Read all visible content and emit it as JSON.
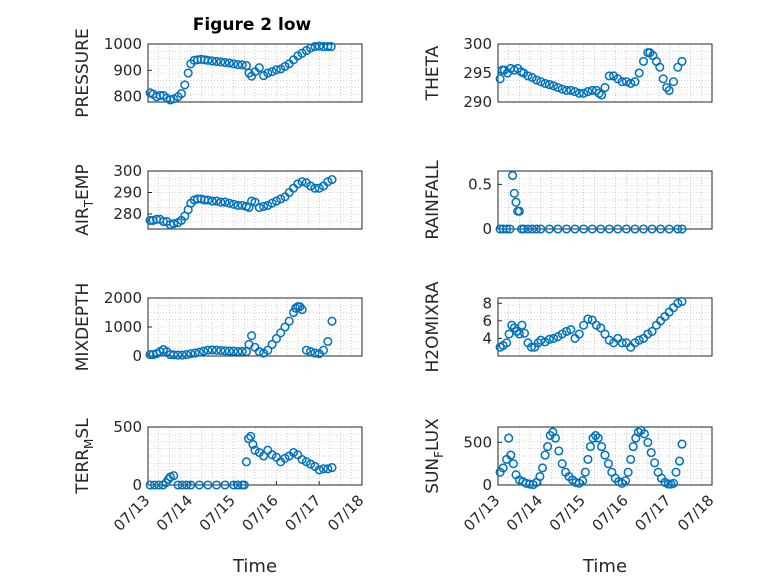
{
  "figure_title": "Figure 2 low",
  "colors": {
    "marker": "#0072bd",
    "axis": "#262626",
    "grid": "#b0b0b0"
  },
  "chart_data": [
    {
      "type": "scatter",
      "id": "pressure",
      "title": "Figure 2 low",
      "ylabel": {
        "main": "PRESSURE",
        "sub": ""
      },
      "xlabel": "",
      "ylim": [
        780,
        1000
      ],
      "yticks": [
        800,
        900,
        1000
      ],
      "xlim": [
        13,
        17.4
      ],
      "xticks": [],
      "xticklabels": [],
      "grid": true,
      "x": [
        13.05,
        13.12,
        13.2,
        13.28,
        13.36,
        13.44,
        13.52,
        13.6,
        13.7,
        13.78,
        13.86,
        13.94,
        14.0,
        14.08,
        14.16,
        14.24,
        14.32,
        14.4,
        14.5,
        14.6,
        14.7,
        14.8,
        14.9,
        15.0,
        15.1,
        15.2,
        15.3,
        15.36,
        15.42,
        15.5,
        15.6,
        15.7,
        15.8,
        15.9,
        16.0,
        16.1,
        16.2,
        16.3,
        16.4,
        16.5,
        16.6,
        16.7,
        16.8,
        16.9,
        17.0,
        17.1,
        17.2,
        17.28
      ],
      "y": [
        815,
        810,
        800,
        805,
        805,
        795,
        788,
        792,
        800,
        812,
        845,
        890,
        925,
        938,
        940,
        942,
        940,
        938,
        936,
        934,
        932,
        930,
        928,
        925,
        922,
        921,
        918,
        890,
        878,
        895,
        910,
        880,
        890,
        895,
        902,
        905,
        915,
        925,
        940,
        955,
        965,
        975,
        985,
        990,
        992,
        990,
        990,
        990
      ]
    },
    {
      "type": "scatter",
      "id": "theta",
      "ylabel": {
        "main": "THETA",
        "sub": ""
      },
      "xlabel": "",
      "ylim": [
        290,
        300
      ],
      "yticks": [
        290,
        295,
        300
      ],
      "xlim": [
        13,
        17.4
      ],
      "xticks": [],
      "xticklabels": [],
      "grid": true,
      "x": [
        13.05,
        13.1,
        13.15,
        13.22,
        13.3,
        13.38,
        13.46,
        13.54,
        13.6,
        13.7,
        13.8,
        13.9,
        14.0,
        14.1,
        14.2,
        14.3,
        14.4,
        14.5,
        14.6,
        14.7,
        14.8,
        14.9,
        15.0,
        15.1,
        15.2,
        15.3,
        15.36,
        15.42,
        15.5,
        15.6,
        15.7,
        15.8,
        15.9,
        16.0,
        16.1,
        16.2,
        16.3,
        16.4,
        16.5,
        16.55,
        16.62,
        16.7,
        16.78,
        16.86,
        16.94,
        17.0,
        17.1,
        17.2,
        17.3
      ],
      "y": [
        294,
        295.5,
        295.5,
        295,
        295.8,
        295.5,
        295.8,
        295.2,
        295,
        294.5,
        294.2,
        293.8,
        293.5,
        293.2,
        293,
        292.8,
        292.5,
        292.2,
        292,
        292,
        291.8,
        291.5,
        291.5,
        291.8,
        292,
        292,
        291.5,
        291.2,
        292.5,
        294.5,
        294.5,
        294,
        293.5,
        293.5,
        293.2,
        293.5,
        295,
        297,
        298.5,
        298.5,
        298,
        297,
        296,
        294,
        292.5,
        292,
        293.5,
        296,
        297
      ]
    },
    {
      "type": "scatter",
      "id": "air_temp",
      "ylabel": {
        "main": "AIR",
        "sub": "T",
        "tail": "EMP"
      },
      "xlabel": "",
      "ylim": [
        273,
        300
      ],
      "yticks": [
        280,
        290,
        300
      ],
      "xlim": [
        13,
        17.4
      ],
      "xticks": [],
      "xticklabels": [],
      "grid": true,
      "x": [
        13.05,
        13.12,
        13.2,
        13.28,
        13.36,
        13.44,
        13.52,
        13.6,
        13.7,
        13.78,
        13.86,
        13.94,
        14.0,
        14.08,
        14.16,
        14.24,
        14.32,
        14.4,
        14.5,
        14.6,
        14.7,
        14.8,
        14.9,
        15.0,
        15.1,
        15.2,
        15.3,
        15.36,
        15.42,
        15.5,
        15.6,
        15.7,
        15.8,
        15.9,
        16.0,
        16.1,
        16.2,
        16.3,
        16.4,
        16.5,
        16.6,
        16.7,
        16.8,
        16.9,
        17.0,
        17.1,
        17.2,
        17.3
      ],
      "y": [
        277,
        277,
        277.5,
        277.5,
        276.5,
        276.5,
        275,
        275.5,
        276,
        277,
        279,
        282,
        285,
        286.5,
        287,
        287,
        286.5,
        286.5,
        286,
        286,
        285.5,
        285.5,
        285,
        284.5,
        284,
        284,
        283.5,
        283,
        286,
        285.5,
        283,
        283.5,
        284,
        285,
        286,
        287,
        288,
        290,
        292,
        294,
        295,
        294.5,
        293,
        292,
        292,
        293,
        295,
        296
      ]
    },
    {
      "type": "scatter",
      "id": "rainfall",
      "ylabel": {
        "main": "RAINFALL",
        "sub": ""
      },
      "xlabel": "",
      "ylim": [
        0,
        0.65
      ],
      "yticks": [
        0,
        0.5
      ],
      "xlim": [
        13,
        17.4
      ],
      "xticks": [],
      "xticklabels": [],
      "grid": true,
      "x": [
        13.05,
        13.12,
        13.2,
        13.28,
        13.34,
        13.38,
        13.42,
        13.46,
        13.5,
        13.55,
        13.6,
        13.7,
        13.8,
        13.9,
        14.0,
        14.2,
        14.4,
        14.6,
        14.8,
        15.0,
        15.2,
        15.4,
        15.6,
        15.8,
        16.0,
        16.2,
        16.4,
        16.6,
        16.8,
        17.0,
        17.2,
        17.3
      ],
      "y": [
        0,
        0,
        0,
        0,
        0.6,
        0.4,
        0.3,
        0.2,
        0.2,
        0,
        0,
        0,
        0,
        0,
        0,
        0,
        0,
        0,
        0,
        0,
        0,
        0,
        0,
        0,
        0,
        0,
        0,
        0,
        0,
        0,
        0,
        0
      ]
    },
    {
      "type": "scatter",
      "id": "mixdepth",
      "ylabel": {
        "main": "MIXDEPTH",
        "sub": ""
      },
      "xlabel": "",
      "ylim": [
        0,
        2000
      ],
      "yticks": [
        0,
        1000,
        2000
      ],
      "xlim": [
        13,
        17.4
      ],
      "xticks": [],
      "xticklabels": [],
      "grid": true,
      "x": [
        13.05,
        13.12,
        13.2,
        13.28,
        13.36,
        13.44,
        13.52,
        13.6,
        13.7,
        13.8,
        13.9,
        14.0,
        14.1,
        14.2,
        14.3,
        14.4,
        14.5,
        14.6,
        14.7,
        14.8,
        14.9,
        15.0,
        15.1,
        15.2,
        15.3,
        15.36,
        15.42,
        15.5,
        15.6,
        15.7,
        15.8,
        15.9,
        16.0,
        16.1,
        16.2,
        16.3,
        16.4,
        16.45,
        16.5,
        16.55,
        16.6,
        16.7,
        16.8,
        16.9,
        17.0,
        17.1,
        17.2,
        17.3
      ],
      "y": [
        50,
        50,
        80,
        150,
        220,
        150,
        50,
        40,
        30,
        30,
        50,
        80,
        100,
        130,
        170,
        200,
        210,
        200,
        190,
        180,
        170,
        170,
        160,
        160,
        150,
        400,
        700,
        300,
        150,
        100,
        200,
        400,
        600,
        800,
        1000,
        1200,
        1500,
        1650,
        1700,
        1700,
        1600,
        200,
        150,
        100,
        80,
        200,
        500,
        1200
      ]
    },
    {
      "type": "scatter",
      "id": "h2omixra",
      "ylabel": {
        "main": "H2OMIXRA",
        "sub": ""
      },
      "xlabel": "",
      "ylim": [
        2,
        8.6
      ],
      "yticks": [
        4,
        6,
        8
      ],
      "xlim": [
        13,
        17.4
      ],
      "xticks": [],
      "xticklabels": [],
      "grid": true,
      "x": [
        13.05,
        13.12,
        13.2,
        13.26,
        13.32,
        13.38,
        13.44,
        13.5,
        13.56,
        13.62,
        13.7,
        13.78,
        13.86,
        13.94,
        14.0,
        14.1,
        14.2,
        14.3,
        14.4,
        14.5,
        14.6,
        14.7,
        14.8,
        14.9,
        15.0,
        15.1,
        15.2,
        15.3,
        15.4,
        15.5,
        15.6,
        15.7,
        15.8,
        15.9,
        16.0,
        16.1,
        16.2,
        16.3,
        16.4,
        16.5,
        16.6,
        16.7,
        16.8,
        16.9,
        17.0,
        17.1,
        17.2,
        17.3
      ],
      "y": [
        3,
        3.2,
        3.5,
        4.5,
        5.5,
        5.2,
        4.8,
        4.5,
        5.5,
        4.6,
        3.5,
        3,
        3,
        3.5,
        3.8,
        3.6,
        3.9,
        4,
        4.2,
        4.5,
        4.8,
        5,
        4,
        4.5,
        5.5,
        6.2,
        6.1,
        5.5,
        5.2,
        4.5,
        3.8,
        3.5,
        4,
        3.5,
        3.5,
        3,
        3.5,
        3.8,
        4,
        4.5,
        4.8,
        5.5,
        6,
        6.5,
        7,
        7.5,
        8,
        8.2
      ]
    },
    {
      "type": "scatter",
      "id": "terr_msl",
      "ylabel": {
        "main": "TERR",
        "sub": "M",
        "tail": "SL"
      },
      "xlabel": "Time",
      "ylim": [
        0,
        500
      ],
      "yticks": [
        0,
        500
      ],
      "xlim": [
        13,
        18
      ],
      "xticks": [
        13,
        14,
        15,
        16,
        17,
        18
      ],
      "xticklabels": [
        "07/13",
        "07/14",
        "07/15",
        "07/16",
        "07/17",
        "07/18"
      ],
      "grid": true,
      "x": [
        13.05,
        13.15,
        13.25,
        13.35,
        13.42,
        13.48,
        13.52,
        13.6,
        13.7,
        13.8,
        13.9,
        14.0,
        14.2,
        14.4,
        14.6,
        14.8,
        15.0,
        15.1,
        15.2,
        15.25,
        15.3,
        15.35,
        15.4,
        15.45,
        15.5,
        15.6,
        15.7,
        15.8,
        15.9,
        16.0,
        16.1,
        16.2,
        16.3,
        16.4,
        16.5,
        16.6,
        16.7,
        16.8,
        16.9,
        17.0,
        17.1,
        17.2,
        17.3
      ],
      "y": [
        0,
        0,
        0,
        0,
        20,
        50,
        70,
        80,
        0,
        0,
        0,
        0,
        0,
        0,
        0,
        0,
        0,
        0,
        0,
        0,
        200,
        400,
        420,
        350,
        300,
        280,
        250,
        300,
        260,
        240,
        200,
        230,
        250,
        280,
        260,
        220,
        200,
        180,
        160,
        130,
        140,
        140,
        150
      ]
    },
    {
      "type": "scatter",
      "id": "sun_flux",
      "ylabel": {
        "main": "SUN",
        "sub": "F",
        "tail": "LUX"
      },
      "xlabel": "Time",
      "ylim": [
        0,
        680
      ],
      "yticks": [
        0,
        500
      ],
      "xlim": [
        13,
        18
      ],
      "xticks": [
        13,
        14,
        15,
        16,
        17,
        18
      ],
      "xticklabels": [
        "07/13",
        "07/14",
        "07/15",
        "07/16",
        "07/17",
        "07/18"
      ],
      "grid": true,
      "x": [
        13.05,
        13.12,
        13.2,
        13.25,
        13.3,
        13.36,
        13.42,
        13.5,
        13.58,
        13.66,
        13.74,
        13.82,
        13.9,
        13.98,
        14.04,
        14.1,
        14.16,
        14.22,
        14.28,
        14.34,
        14.42,
        14.5,
        14.58,
        14.66,
        14.74,
        14.82,
        14.9,
        14.98,
        15.04,
        15.1,
        15.16,
        15.22,
        15.28,
        15.34,
        15.42,
        15.5,
        15.58,
        15.66,
        15.74,
        15.82,
        15.9,
        15.98,
        16.04,
        16.1,
        16.16,
        16.22,
        16.28,
        16.34,
        16.42,
        16.5,
        16.58,
        16.66,
        16.74,
        16.82,
        16.9,
        16.98,
        17.04,
        17.1,
        17.16,
        17.24,
        17.3
      ],
      "y": [
        150,
        200,
        300,
        550,
        350,
        250,
        120,
        60,
        40,
        20,
        10,
        5,
        30,
        100,
        200,
        350,
        450,
        580,
        620,
        550,
        400,
        250,
        150,
        100,
        60,
        30,
        20,
        50,
        150,
        300,
        450,
        550,
        580,
        550,
        450,
        350,
        250,
        150,
        80,
        40,
        20,
        50,
        150,
        300,
        450,
        550,
        620,
        640,
        600,
        500,
        380,
        260,
        150,
        80,
        30,
        10,
        10,
        20,
        150,
        280,
        480
      ]
    }
  ]
}
